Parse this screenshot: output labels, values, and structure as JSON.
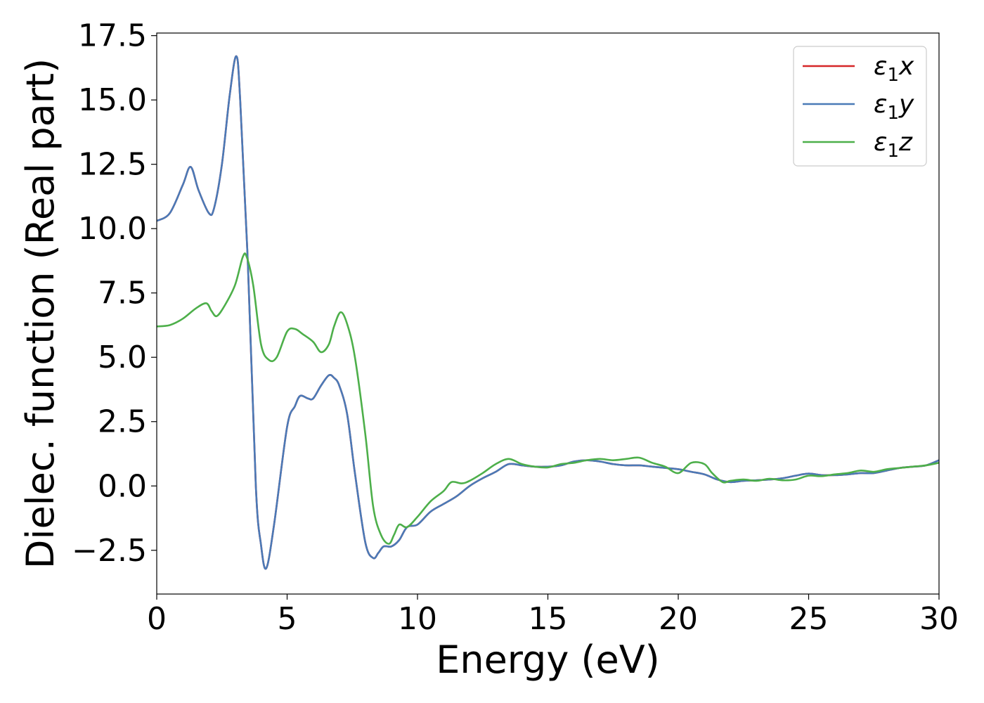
{
  "chart_data": {
    "type": "line",
    "title": "",
    "xlabel": "Energy (eV)",
    "ylabel": "Dielec. function (Real part)",
    "xlim": [
      0,
      30
    ],
    "ylim": [
      -4.2,
      17.6
    ],
    "xticks": [
      0,
      5,
      10,
      15,
      20,
      25,
      30
    ],
    "xtick_labels": [
      "0",
      "5",
      "10",
      "15",
      "20",
      "25",
      "30"
    ],
    "yticks": [
      -2.5,
      0.0,
      2.5,
      5.0,
      7.5,
      10.0,
      12.5,
      15.0,
      17.5
    ],
    "ytick_labels": [
      "−2.5",
      "0.0",
      "2.5",
      "5.0",
      "7.5",
      "10.0",
      "12.5",
      "15.0",
      "17.5"
    ],
    "grid": false,
    "legend_position": "top-right",
    "series": [
      {
        "name": "ε₁x",
        "legend_base": "ε",
        "legend_sub": "1",
        "legend_tail": "x",
        "color": "#d62728",
        "x": [
          0,
          0.5,
          1.0,
          1.3,
          1.6,
          2.0,
          2.2,
          2.5,
          2.8,
          3.05,
          3.2,
          3.5,
          3.8,
          4.0,
          4.2,
          4.5,
          5.0,
          5.3,
          5.5,
          5.8,
          6.0,
          6.3,
          6.6,
          6.8,
          7.0,
          7.3,
          7.6,
          8.0,
          8.3,
          8.5,
          8.7,
          9.0,
          9.3,
          9.6,
          10.0,
          10.5,
          11.0,
          11.5,
          12.0,
          12.5,
          13.0,
          13.5,
          14.0,
          14.5,
          15.0,
          15.5,
          16.0,
          16.5,
          17.0,
          17.5,
          18.0,
          18.5,
          19.0,
          19.5,
          20.0,
          20.5,
          21.0,
          21.5,
          22.0,
          22.5,
          23.0,
          23.5,
          24.0,
          24.5,
          25.0,
          25.5,
          26.0,
          26.5,
          27.0,
          27.5,
          28.0,
          28.5,
          29.0,
          29.5,
          30.0
        ],
        "y": [
          10.3,
          10.6,
          11.7,
          12.4,
          11.5,
          10.6,
          10.8,
          12.5,
          15.2,
          16.7,
          15.0,
          8.5,
          0.0,
          -2.3,
          -3.2,
          -1.5,
          2.3,
          3.1,
          3.5,
          3.4,
          3.4,
          3.9,
          4.3,
          4.2,
          3.9,
          2.8,
          0.5,
          -2.2,
          -2.8,
          -2.6,
          -2.35,
          -2.35,
          -2.1,
          -1.6,
          -1.5,
          -1.0,
          -0.7,
          -0.4,
          0.0,
          0.3,
          0.55,
          0.85,
          0.8,
          0.75,
          0.75,
          0.8,
          0.95,
          1.0,
          0.95,
          0.85,
          0.8,
          0.8,
          0.75,
          0.7,
          0.65,
          0.55,
          0.45,
          0.25,
          0.15,
          0.2,
          0.22,
          0.25,
          0.3,
          0.4,
          0.48,
          0.42,
          0.42,
          0.45,
          0.5,
          0.5,
          0.6,
          0.7,
          0.75,
          0.8,
          1.0
        ]
      },
      {
        "name": "ε₁y",
        "legend_base": "ε",
        "legend_sub": "1",
        "legend_tail": "y",
        "color": "#4a7ab7",
        "x": [
          0,
          0.5,
          1.0,
          1.3,
          1.6,
          2.0,
          2.2,
          2.5,
          2.8,
          3.05,
          3.2,
          3.5,
          3.8,
          4.0,
          4.2,
          4.5,
          5.0,
          5.3,
          5.5,
          5.8,
          6.0,
          6.3,
          6.6,
          6.8,
          7.0,
          7.3,
          7.6,
          8.0,
          8.3,
          8.5,
          8.7,
          9.0,
          9.3,
          9.6,
          10.0,
          10.5,
          11.0,
          11.5,
          12.0,
          12.5,
          13.0,
          13.5,
          14.0,
          14.5,
          15.0,
          15.5,
          16.0,
          16.5,
          17.0,
          17.5,
          18.0,
          18.5,
          19.0,
          19.5,
          20.0,
          20.5,
          21.0,
          21.5,
          22.0,
          22.5,
          23.0,
          23.5,
          24.0,
          24.5,
          25.0,
          25.5,
          26.0,
          26.5,
          27.0,
          27.5,
          28.0,
          28.5,
          29.0,
          29.5,
          30.0
        ],
        "y": [
          10.3,
          10.6,
          11.7,
          12.4,
          11.5,
          10.6,
          10.8,
          12.5,
          15.2,
          16.7,
          15.0,
          8.5,
          0.0,
          -2.3,
          -3.2,
          -1.5,
          2.3,
          3.1,
          3.5,
          3.4,
          3.4,
          3.9,
          4.3,
          4.2,
          3.9,
          2.8,
          0.5,
          -2.2,
          -2.8,
          -2.6,
          -2.35,
          -2.35,
          -2.1,
          -1.6,
          -1.5,
          -1.0,
          -0.7,
          -0.4,
          0.0,
          0.3,
          0.55,
          0.85,
          0.8,
          0.75,
          0.75,
          0.8,
          0.95,
          1.0,
          0.95,
          0.85,
          0.8,
          0.8,
          0.75,
          0.7,
          0.65,
          0.55,
          0.45,
          0.25,
          0.15,
          0.2,
          0.22,
          0.25,
          0.3,
          0.4,
          0.48,
          0.42,
          0.42,
          0.45,
          0.5,
          0.5,
          0.6,
          0.7,
          0.75,
          0.8,
          1.0
        ]
      },
      {
        "name": "ε₁z",
        "legend_base": "ε",
        "legend_sub": "1",
        "legend_tail": "z",
        "color": "#4daf4a",
        "x": [
          0,
          0.5,
          1.0,
          1.5,
          1.9,
          2.1,
          2.3,
          2.6,
          3.0,
          3.3,
          3.45,
          3.7,
          4.0,
          4.3,
          4.6,
          5.0,
          5.3,
          5.6,
          6.0,
          6.3,
          6.6,
          6.8,
          7.05,
          7.3,
          7.6,
          8.0,
          8.3,
          8.6,
          8.9,
          9.1,
          9.3,
          9.6,
          10.0,
          10.5,
          11.0,
          11.3,
          11.7,
          12.0,
          12.5,
          13.0,
          13.5,
          14.0,
          14.5,
          15.0,
          15.5,
          16.0,
          16.5,
          17.0,
          17.5,
          18.0,
          18.5,
          19.0,
          19.5,
          20.0,
          20.5,
          21.0,
          21.3,
          21.7,
          22.0,
          22.5,
          23.0,
          23.5,
          24.0,
          24.5,
          25.0,
          25.5,
          26.0,
          26.5,
          27.0,
          27.5,
          28.0,
          28.5,
          29.0,
          29.5,
          30.0
        ],
        "y": [
          6.2,
          6.25,
          6.5,
          6.9,
          7.1,
          6.8,
          6.6,
          7.0,
          7.8,
          8.9,
          8.9,
          7.8,
          5.5,
          4.9,
          5.0,
          6.0,
          6.1,
          5.9,
          5.6,
          5.2,
          5.5,
          6.2,
          6.75,
          6.3,
          5.0,
          2.0,
          -0.8,
          -1.9,
          -2.25,
          -1.9,
          -1.5,
          -1.6,
          -1.2,
          -0.6,
          -0.2,
          0.15,
          0.1,
          0.2,
          0.5,
          0.85,
          1.05,
          0.85,
          0.75,
          0.72,
          0.85,
          0.9,
          1.0,
          1.05,
          1.0,
          1.05,
          1.1,
          0.9,
          0.75,
          0.5,
          0.9,
          0.85,
          0.5,
          0.15,
          0.2,
          0.25,
          0.2,
          0.28,
          0.22,
          0.25,
          0.4,
          0.38,
          0.45,
          0.5,
          0.6,
          0.55,
          0.65,
          0.7,
          0.75,
          0.8,
          0.9
        ]
      }
    ]
  }
}
